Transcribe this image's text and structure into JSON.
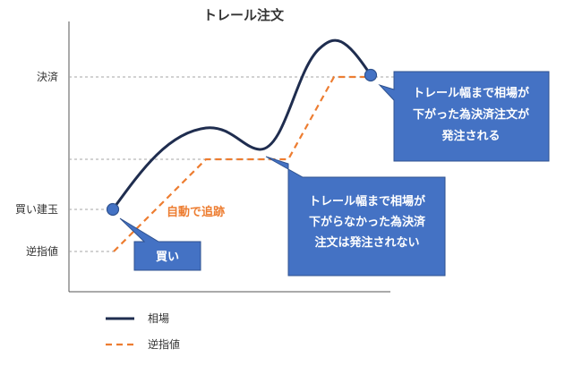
{
  "title": "トレール注文",
  "y_labels": {
    "settlement": "決済",
    "buy_price": "買い建玉",
    "stop_price": "逆指値"
  },
  "trail_label": "自動で追跡",
  "callouts": {
    "buy": [
      "買い"
    ],
    "not_triggered": [
      "トレール幅まで相場が",
      "下がらなかった為決済",
      "注文は発注されない"
    ],
    "triggered": [
      "トレール幅まで相場が",
      "下がった為決済注文が",
      "発注される"
    ]
  },
  "legend": [
    {
      "label": "相場",
      "style": "solid",
      "color": "#1F2D4F"
    },
    {
      "label": "逆指値",
      "style": "dashed",
      "color": "#ED7D31"
    }
  ],
  "colors": {
    "price": "#1F2D4F",
    "stop": "#ED7D31",
    "callout_fill": "#4472C4",
    "callout_stroke": "#2F528F",
    "marker": "#4472C4",
    "axis": "#555555",
    "guide": "#A6A6A6"
  }
}
